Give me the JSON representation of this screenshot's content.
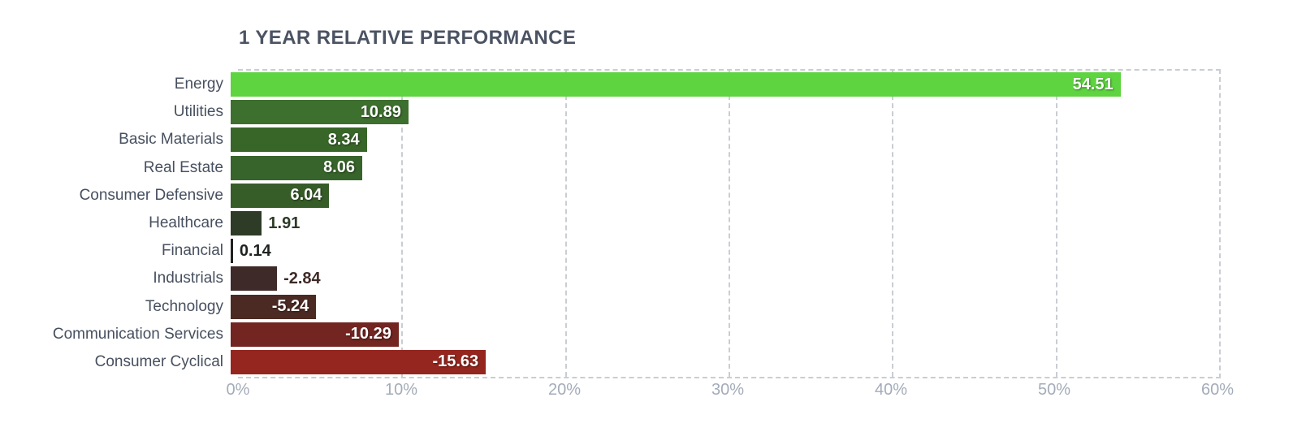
{
  "chart": {
    "title": "1 YEAR RELATIVE PERFORMANCE"
  },
  "chart_data": {
    "type": "bar",
    "orientation": "horizontal",
    "title": "1 YEAR RELATIVE PERFORMANCE",
    "categories": [
      "Energy",
      "Utilities",
      "Basic Materials",
      "Real Estate",
      "Consumer Defensive",
      "Healthcare",
      "Financial",
      "Industrials",
      "Technology",
      "Communication Services",
      "Consumer Cyclical"
    ],
    "values": [
      54.51,
      10.89,
      8.34,
      8.06,
      6.04,
      1.91,
      0.14,
      -2.84,
      -5.24,
      -10.29,
      -15.63
    ],
    "value_labels": [
      "54.51",
      "10.89",
      "8.34",
      "8.06",
      "6.04",
      "1.91",
      "0.14",
      "-2.84",
      "-5.24",
      "-10.29",
      "-15.63"
    ],
    "bar_colors": [
      "#5ed440",
      "#3d6f2e",
      "#386629",
      "#37642a",
      "#365c28",
      "#2d3b27",
      "#1f2220",
      "#3e2a28",
      "#4c2a24",
      "#722521",
      "#95261f"
    ],
    "bars_plotted_by": "absolute value",
    "xlabel": "",
    "ylabel": "",
    "x_ticks": [
      "0%",
      "10%",
      "20%",
      "30%",
      "40%",
      "50%",
      "60%"
    ],
    "x_tick_values": [
      0,
      10,
      20,
      30,
      40,
      50,
      60
    ],
    "xlim": [
      0,
      60
    ],
    "grid": "dashed vertical gridlines every 10%",
    "legend": "none"
  },
  "style_colors": {
    "title_text": "#4b5363",
    "category_text": "#47505f",
    "tick_text": "#a4acb9",
    "grid": "#c9cdd4",
    "value_inside_text": "#ffffff",
    "background": "#ffffff"
  }
}
